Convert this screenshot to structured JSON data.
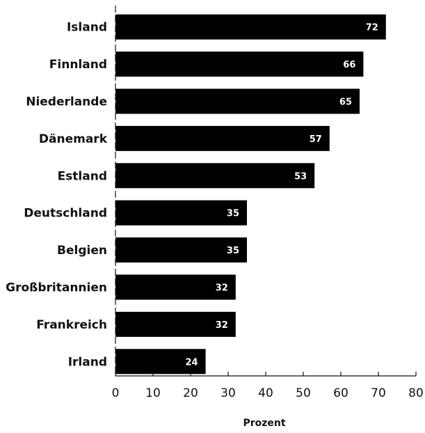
{
  "chart_data": {
    "type": "bar",
    "orientation": "horizontal",
    "categories": [
      "Island",
      "Finnland",
      "Niederlande",
      "Dänemark",
      "Estland",
      "Deutschland",
      "Belgien",
      "Großbritannien",
      "Frankreich",
      "Irland"
    ],
    "values": [
      72,
      66,
      65,
      57,
      53,
      35,
      35,
      32,
      32,
      24
    ],
    "data_labels": [
      "72",
      "66",
      "65",
      "57",
      "53",
      "35",
      "35",
      "32",
      "32",
      "24"
    ],
    "xlabel": "Prozent",
    "xlim": [
      0,
      80
    ],
    "xticks": [
      "0",
      "10",
      "20",
      "30",
      "40",
      "50",
      "60",
      "70",
      "80"
    ],
    "grid": false,
    "bar_color": "#000000",
    "label_color": "#ffffff"
  }
}
